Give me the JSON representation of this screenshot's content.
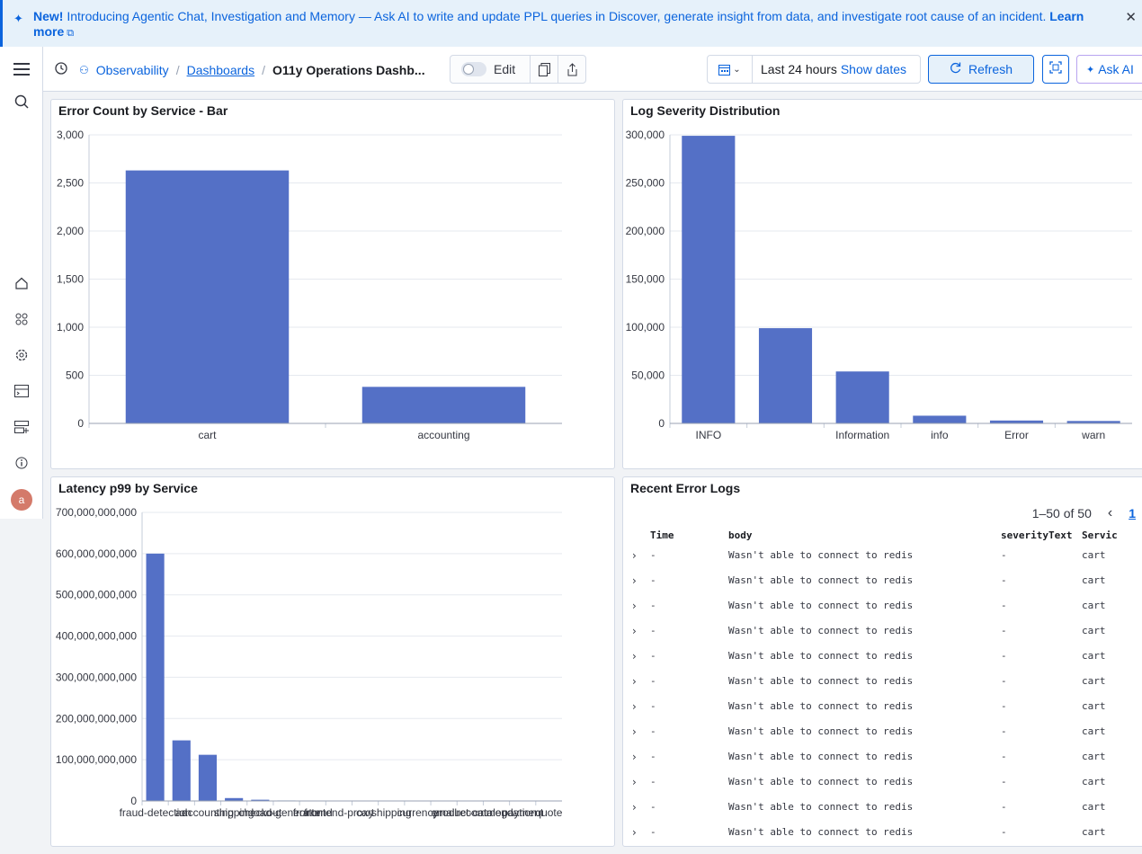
{
  "banner": {
    "new_label": "New!",
    "message": " Introducing Agentic Chat, Investigation and Memory — Ask AI to write and update PPL queries in Discover, generate insight from data, and investigate root cause of an incident. ",
    "learn_more": "Learn more"
  },
  "header": {
    "breadcrumbs": [
      "Observability",
      "Dashboards",
      "O11y Operations Dashb..."
    ],
    "edit_label": "Edit",
    "time_range": "Last 24 hours",
    "show_dates": "Show dates",
    "refresh_label": "Refresh",
    "ask_ai_label": "Ask AI"
  },
  "user": {
    "avatar_initial": "a"
  },
  "panels": {
    "error_count": {
      "title": "Error Count by Service - Bar"
    },
    "log_severity": {
      "title": "Log Severity Distribution"
    },
    "latency": {
      "title": "Latency p99 by Service"
    },
    "recent_errors": {
      "title": "Recent Error Logs",
      "pagination": "1–50 of 50",
      "page": "1",
      "columns": [
        "Time",
        "body",
        "severityText",
        "Servic"
      ],
      "rows": [
        {
          "time": "-",
          "body": "Wasn't able to connect to redis",
          "severity": "-",
          "service": "cart"
        },
        {
          "time": "-",
          "body": "Wasn't able to connect to redis",
          "severity": "-",
          "service": "cart"
        },
        {
          "time": "-",
          "body": "Wasn't able to connect to redis",
          "severity": "-",
          "service": "cart"
        },
        {
          "time": "-",
          "body": "Wasn't able to connect to redis",
          "severity": "-",
          "service": "cart"
        },
        {
          "time": "-",
          "body": "Wasn't able to connect to redis",
          "severity": "-",
          "service": "cart"
        },
        {
          "time": "-",
          "body": "Wasn't able to connect to redis",
          "severity": "-",
          "service": "cart"
        },
        {
          "time": "-",
          "body": "Wasn't able to connect to redis",
          "severity": "-",
          "service": "cart"
        },
        {
          "time": "-",
          "body": "Wasn't able to connect to redis",
          "severity": "-",
          "service": "cart"
        },
        {
          "time": "-",
          "body": "Wasn't able to connect to redis",
          "severity": "-",
          "service": "cart"
        },
        {
          "time": "-",
          "body": "Wasn't able to connect to redis",
          "severity": "-",
          "service": "cart"
        },
        {
          "time": "-",
          "body": "Wasn't able to connect to redis",
          "severity": "-",
          "service": "cart"
        },
        {
          "time": "-",
          "body": "Wasn't able to connect to redis",
          "severity": "-",
          "service": "cart"
        }
      ]
    }
  },
  "colors": {
    "bar": "#5470c6",
    "accent": "#0b64dd"
  },
  "chart_data": [
    {
      "type": "bar",
      "title": "Error Count by Service - Bar",
      "categories": [
        "cart",
        "accounting"
      ],
      "values": [
        2630,
        380
      ],
      "ylim": [
        0,
        3000
      ],
      "yticks": [
        "0",
        "500",
        "1,000",
        "1,500",
        "2,000",
        "2,500",
        "3,000"
      ]
    },
    {
      "type": "bar",
      "title": "Log Severity Distribution",
      "categories": [
        "INFO",
        "",
        "Information",
        "info",
        "Error",
        "warn"
      ],
      "values": [
        299000,
        99000,
        54000,
        8000,
        3000,
        2500
      ],
      "ylim": [
        0,
        300000
      ],
      "yticks": [
        "0",
        "50,000",
        "100,000",
        "150,000",
        "200,000",
        "250,000",
        "300,000"
      ]
    },
    {
      "type": "bar",
      "title": "Latency p99 by Service",
      "categories": [
        "fraud-detection",
        "ad",
        "accounting",
        "shipping",
        "checkout",
        "load-generator",
        "frontend",
        "frontend-proxy",
        "cart",
        "shipping",
        "currency",
        "email",
        "product-catalog",
        "recommendation",
        "payment",
        "quote"
      ],
      "values": [
        600000000000,
        147000000000,
        112000000000,
        7000000000,
        3000000000,
        1200000000,
        900000000,
        800000000,
        600000000,
        500000000,
        0,
        0,
        0,
        0,
        0,
        0
      ],
      "ylim": [
        0,
        700000000000
      ],
      "yticks": [
        "0",
        "100,000,000,000",
        "200,000,000,000",
        "300,000,000,000",
        "400,000,000,000",
        "500,000,000,000",
        "600,000,000,000",
        "700,000,000,000"
      ]
    }
  ]
}
